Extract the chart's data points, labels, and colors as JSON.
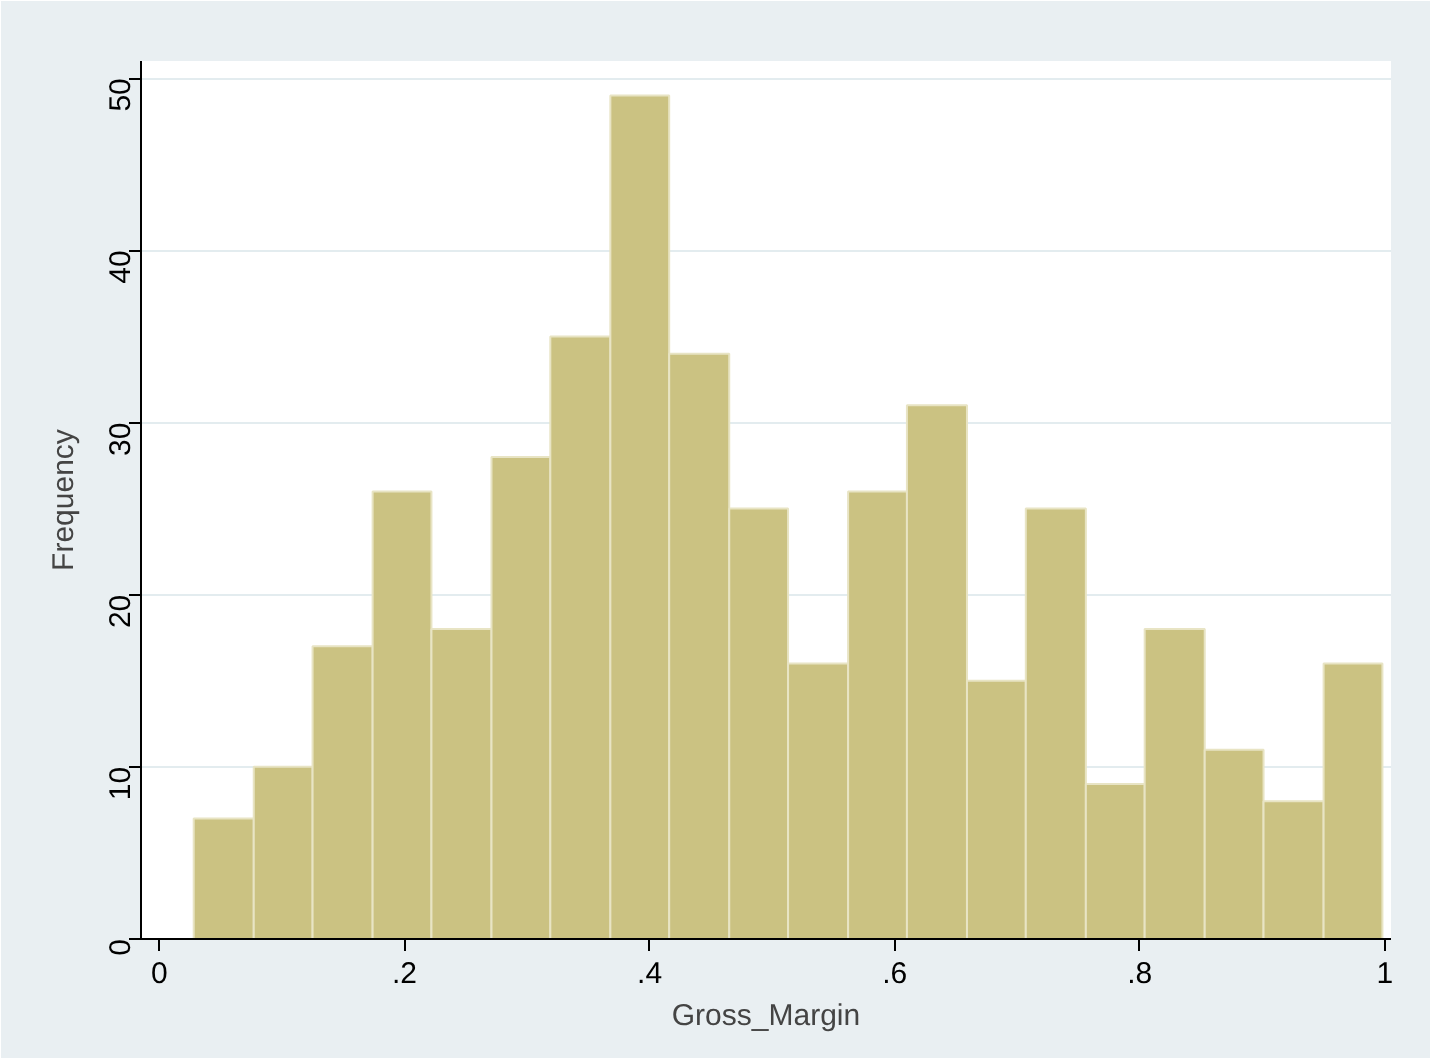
{
  "chart_data": {
    "type": "histogram",
    "xlabel": "Gross_Margin",
    "ylabel": "Frequency",
    "bins": [
      0.028,
      0.077,
      0.125,
      0.174,
      0.222,
      0.271,
      0.319,
      0.368,
      0.416,
      0.465,
      0.513,
      0.562,
      0.61,
      0.659,
      0.707,
      0.756,
      0.804,
      0.853,
      0.901,
      0.95,
      0.998
    ],
    "values": [
      7,
      10,
      17,
      26,
      18,
      28,
      35,
      49,
      34,
      25,
      16,
      26,
      31,
      15,
      25,
      9,
      18,
      11,
      8,
      16
    ],
    "color": "#cbc282",
    "xlim": [
      -0.015,
      1.005
    ],
    "ylim": [
      0,
      51
    ],
    "xticks": [
      0,
      {
        "value": 0.2,
        "label": ".2"
      },
      {
        "value": 0.4,
        "label": ".4"
      },
      {
        "value": 0.6,
        "label": ".6"
      },
      {
        "value": 0.8,
        "label": ".8"
      },
      1
    ],
    "yticks": [
      0,
      10,
      20,
      30,
      40,
      50
    ],
    "grid": "y"
  }
}
